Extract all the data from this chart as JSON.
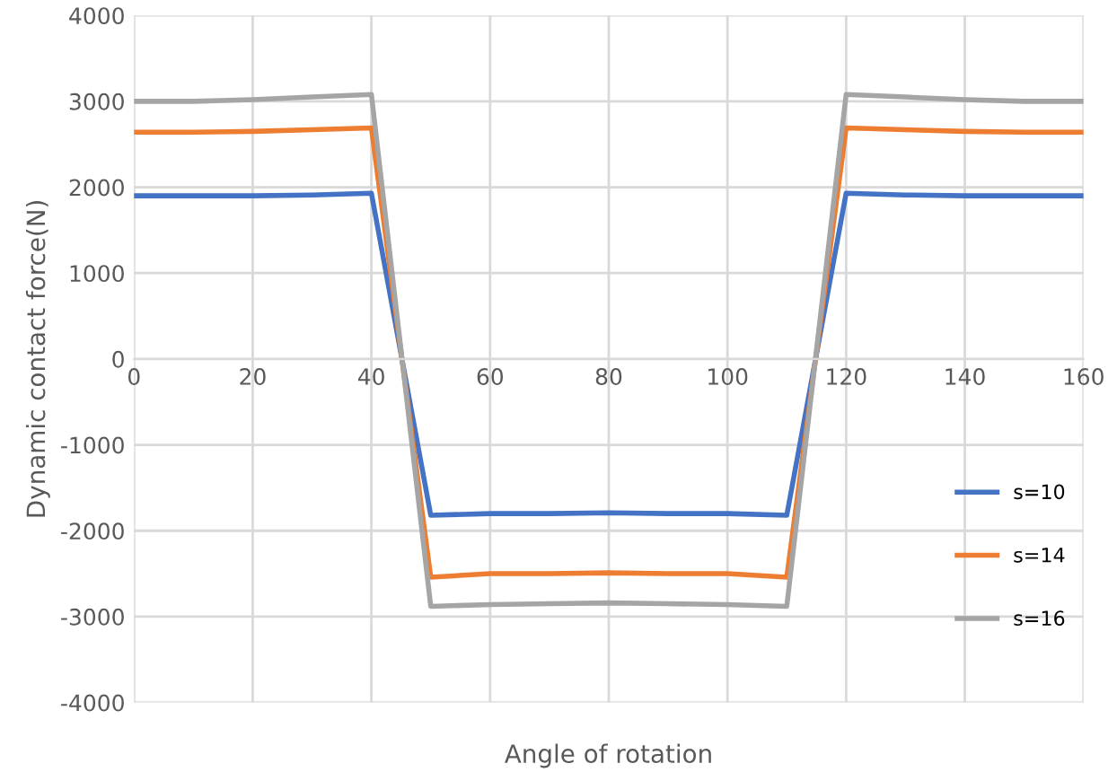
{
  "chart_data": {
    "type": "line",
    "xlabel": "Angle of rotation",
    "ylabel": "Dynamic contact force(N)",
    "x": [
      0,
      10,
      20,
      30,
      40,
      50,
      60,
      70,
      80,
      90,
      100,
      110,
      120,
      130,
      140,
      150,
      160
    ],
    "series": [
      {
        "name": "s=10",
        "color": "#4472c4",
        "values": [
          1900,
          1900,
          1900,
          1910,
          1930,
          -1820,
          -1800,
          -1800,
          -1790,
          -1800,
          -1800,
          -1820,
          1930,
          1910,
          1900,
          1900,
          1900
        ]
      },
      {
        "name": "s=14",
        "color": "#ed7d31",
        "values": [
          2640,
          2640,
          2650,
          2670,
          2690,
          -2540,
          -2500,
          -2500,
          -2490,
          -2500,
          -2500,
          -2540,
          2690,
          2670,
          2650,
          2640,
          2640
        ]
      },
      {
        "name": "s=16",
        "color": "#a5a5a5",
        "values": [
          3000,
          3000,
          3020,
          3050,
          3080,
          -2880,
          -2860,
          -2850,
          -2840,
          -2850,
          -2860,
          -2880,
          3080,
          3050,
          3020,
          3000,
          3000
        ]
      }
    ],
    "xlim": [
      0,
      160
    ],
    "xticks": [
      0,
      20,
      40,
      60,
      80,
      100,
      120,
      140,
      160
    ],
    "ylim": [
      -4000,
      4000
    ],
    "yticks": [
      -4000,
      -3000,
      -2000,
      -1000,
      0,
      1000,
      2000,
      3000,
      4000
    ],
    "grid": true,
    "legend": "bottom right",
    "marker": "none",
    "line_style": "solid"
  }
}
